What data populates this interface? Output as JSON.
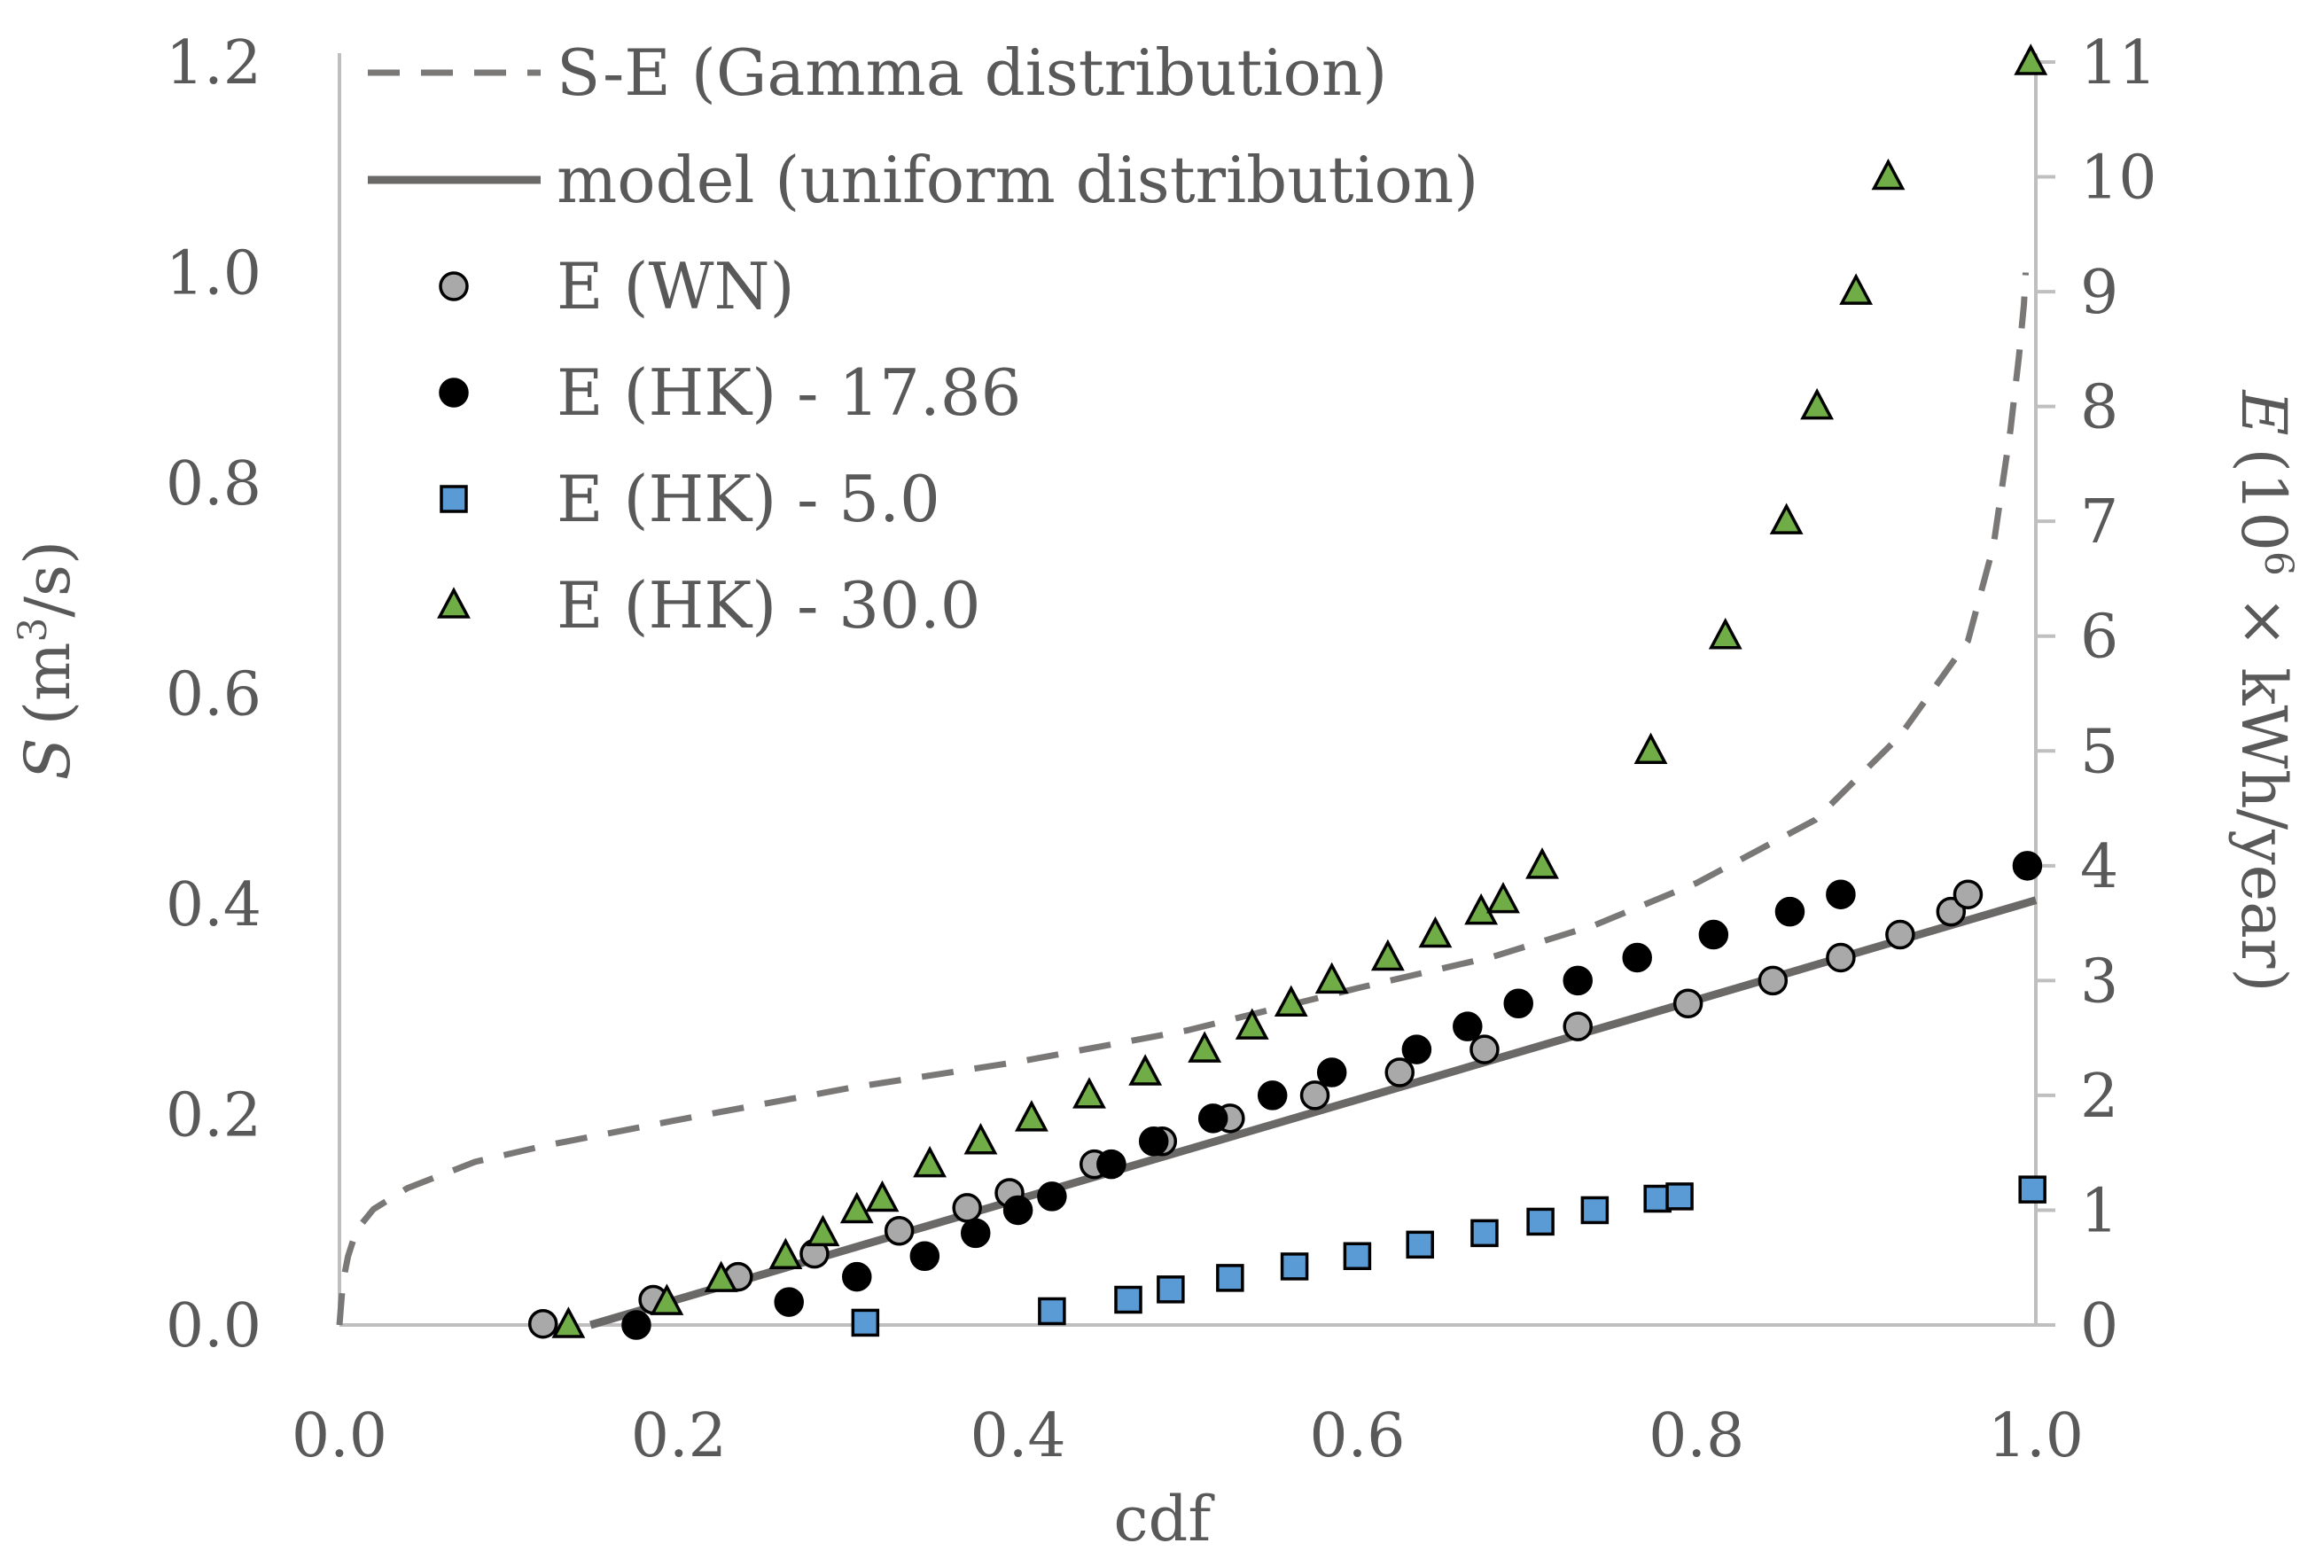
{
  "chart_data": {
    "type": "scatter",
    "title": "",
    "xlabel": "cdf",
    "ylabel_left": {
      "symbol": "S",
      "unit_open": "(m",
      "unit_sup": "3",
      "unit_close": "/s)"
    },
    "ylabel_right": {
      "symbol": "E",
      "unit_open": "(10",
      "unit_sup": "6",
      "unit_close": " × kWh/year)"
    },
    "xlim": [
      0,
      1
    ],
    "ylim_left": [
      0,
      1.2
    ],
    "ylim_right": [
      0,
      11
    ],
    "grid": false,
    "legend_position": "top-left",
    "x_ticks": [
      "0.0",
      "0.2",
      "0.4",
      "0.6",
      "0.8",
      "1.0"
    ],
    "y_left_ticks": [
      "0.0",
      "0.2",
      "0.4",
      "0.6",
      "0.8",
      "1.0",
      "1.2"
    ],
    "y_right_ticks": [
      "0",
      "1",
      "2",
      "3",
      "4",
      "5",
      "6",
      "7",
      "8",
      "9",
      "10",
      "11"
    ],
    "series": [
      {
        "name": "S-E (Gamma distribution)",
        "kind": "line",
        "style": "dashed",
        "axis": "left",
        "color": "#7a7777",
        "points": [
          [
            0.0,
            0.0
          ],
          [
            0.002,
            0.04
          ],
          [
            0.005,
            0.065
          ],
          [
            0.01,
            0.09
          ],
          [
            0.02,
            0.11
          ],
          [
            0.04,
            0.13
          ],
          [
            0.08,
            0.155
          ],
          [
            0.12,
            0.17
          ],
          [
            0.2,
            0.195
          ],
          [
            0.3,
            0.225
          ],
          [
            0.4,
            0.25
          ],
          [
            0.5,
            0.28
          ],
          [
            0.6,
            0.32
          ],
          [
            0.68,
            0.35
          ],
          [
            0.74,
            0.38
          ],
          [
            0.8,
            0.42
          ],
          [
            0.87,
            0.48
          ],
          [
            0.92,
            0.56
          ],
          [
            0.96,
            0.65
          ],
          [
            0.975,
            0.74
          ],
          [
            0.985,
            0.85
          ],
          [
            0.99,
            0.92
          ],
          [
            0.993,
            0.97
          ],
          [
            0.994,
            1.0
          ]
        ]
      },
      {
        "name": "model (uniform distribution)",
        "kind": "line",
        "style": "solid",
        "axis": "right",
        "color": "#6b6868",
        "points": [
          [
            0.148,
            0.0
          ],
          [
            1.0,
            3.7
          ]
        ]
      },
      {
        "name": "E (WN)",
        "kind": "marker",
        "marker": "circle",
        "axis": "right",
        "fill": "#a9a9a9",
        "stroke": "#000000",
        "points": [
          [
            0.12,
            0.01
          ],
          [
            0.185,
            0.22
          ],
          [
            0.235,
            0.42
          ],
          [
            0.28,
            0.62
          ],
          [
            0.33,
            0.82
          ],
          [
            0.37,
            1.02
          ],
          [
            0.395,
            1.15
          ],
          [
            0.445,
            1.4
          ],
          [
            0.485,
            1.6
          ],
          [
            0.525,
            1.8
          ],
          [
            0.575,
            2.0
          ],
          [
            0.625,
            2.2
          ],
          [
            0.675,
            2.4
          ],
          [
            0.73,
            2.6
          ],
          [
            0.795,
            2.8
          ],
          [
            0.845,
            3.0
          ],
          [
            0.885,
            3.2
          ],
          [
            0.92,
            3.4
          ],
          [
            0.95,
            3.6
          ],
          [
            0.96,
            3.75
          ]
        ]
      },
      {
        "name": "E (HK) - 17.86",
        "kind": "marker",
        "marker": "circle",
        "axis": "right",
        "fill": "#000000",
        "stroke": "#000000",
        "points": [
          [
            0.175,
            0.0
          ],
          [
            0.265,
            0.2
          ],
          [
            0.305,
            0.42
          ],
          [
            0.345,
            0.6
          ],
          [
            0.375,
            0.8
          ],
          [
            0.4,
            1.0
          ],
          [
            0.42,
            1.12
          ],
          [
            0.455,
            1.4
          ],
          [
            0.48,
            1.6
          ],
          [
            0.515,
            1.8
          ],
          [
            0.55,
            2.0
          ],
          [
            0.585,
            2.2
          ],
          [
            0.635,
            2.4
          ],
          [
            0.665,
            2.6
          ],
          [
            0.695,
            2.8
          ],
          [
            0.73,
            3.0
          ],
          [
            0.765,
            3.2
          ],
          [
            0.81,
            3.4
          ],
          [
            0.855,
            3.6
          ],
          [
            0.885,
            3.75
          ],
          [
            0.995,
            4.0
          ]
        ]
      },
      {
        "name": "E (HK) - 5.0",
        "kind": "marker",
        "marker": "square",
        "axis": "right",
        "fill": "#5b9bd5",
        "stroke": "#000000",
        "points": [
          [
            0.31,
            0.02
          ],
          [
            0.42,
            0.12
          ],
          [
            0.465,
            0.22
          ],
          [
            0.49,
            0.31
          ],
          [
            0.525,
            0.41
          ],
          [
            0.563,
            0.51
          ],
          [
            0.6,
            0.6
          ],
          [
            0.637,
            0.7
          ],
          [
            0.675,
            0.8
          ],
          [
            0.708,
            0.9
          ],
          [
            0.74,
            1.0
          ],
          [
            0.777,
            1.1
          ],
          [
            0.79,
            1.12
          ],
          [
            0.998,
            1.18
          ]
        ]
      },
      {
        "name": "E (HK) - 30.0",
        "kind": "marker",
        "marker": "triangle",
        "axis": "right",
        "fill": "#70ad47",
        "stroke": "#000000",
        "points": [
          [
            0.135,
            0.0
          ],
          [
            0.193,
            0.2
          ],
          [
            0.225,
            0.4
          ],
          [
            0.263,
            0.6
          ],
          [
            0.285,
            0.8
          ],
          [
            0.305,
            1.0
          ],
          [
            0.32,
            1.1
          ],
          [
            0.348,
            1.4
          ],
          [
            0.378,
            1.6
          ],
          [
            0.408,
            1.8
          ],
          [
            0.442,
            2.0
          ],
          [
            0.475,
            2.2
          ],
          [
            0.51,
            2.4
          ],
          [
            0.538,
            2.6
          ],
          [
            0.561,
            2.8
          ],
          [
            0.585,
            3.0
          ],
          [
            0.618,
            3.2
          ],
          [
            0.646,
            3.4
          ],
          [
            0.673,
            3.6
          ],
          [
            0.686,
            3.7
          ],
          [
            0.709,
            4.0
          ],
          [
            0.773,
            5.0
          ],
          [
            0.817,
            6.0
          ],
          [
            0.853,
            7.0
          ],
          [
            0.871,
            8.0
          ],
          [
            0.894,
            9.0
          ],
          [
            0.913,
            10.0
          ],
          [
            0.997,
            11.0
          ]
        ]
      }
    ]
  }
}
